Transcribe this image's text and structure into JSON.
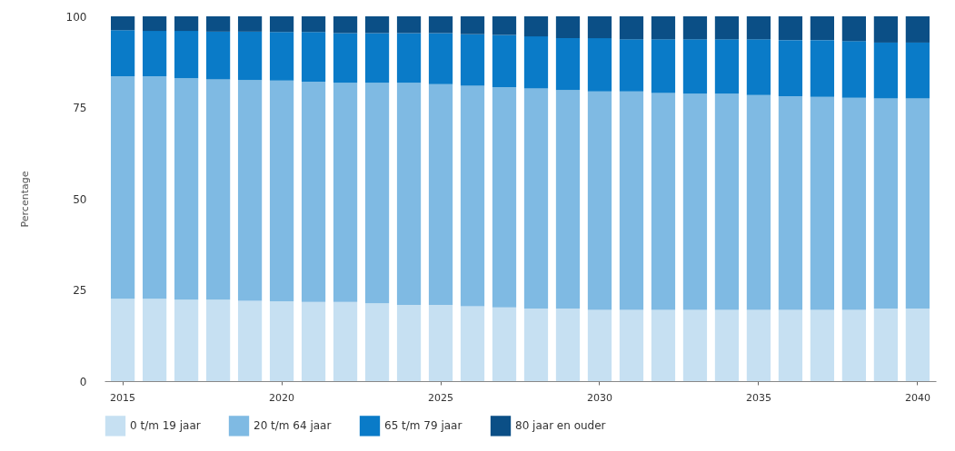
{
  "chart_data": {
    "type": "bar",
    "stacked": true,
    "ylabel": "Percentage",
    "ylim": [
      0,
      100
    ],
    "yticks": [
      0,
      25,
      50,
      75,
      100
    ],
    "grid": false,
    "legend": "bottom",
    "categories": [
      "2015",
      null,
      null,
      null,
      null,
      "2020",
      null,
      null,
      null,
      null,
      "2025",
      null,
      null,
      null,
      null,
      "2030",
      null,
      null,
      null,
      null,
      "2035",
      null,
      null,
      null,
      null,
      "2040"
    ],
    "series": [
      {
        "name": "0 t/m 19 jaar",
        "color": "#c6e0f2",
        "values": [
          22.6,
          22.6,
          22.3,
          22.3,
          22.0,
          21.9,
          21.7,
          21.7,
          21.3,
          20.9,
          20.9,
          20.5,
          20.2,
          19.9,
          19.9,
          19.5,
          19.5,
          19.5,
          19.5,
          19.5,
          19.5,
          19.5,
          19.5,
          19.5,
          19.9,
          19.9
        ]
      },
      {
        "name": "20 t/m 64 jaar",
        "color": "#7fbae3",
        "values": [
          61.0,
          61.0,
          60.7,
          60.4,
          60.5,
          60.5,
          60.4,
          60.1,
          60.5,
          60.9,
          60.5,
          60.5,
          60.4,
          60.3,
          59.9,
          59.9,
          59.9,
          59.5,
          59.3,
          59.3,
          58.9,
          58.6,
          58.4,
          58.2,
          57.6,
          57.6
        ]
      },
      {
        "name": "65 t/m 79 jaar",
        "color": "#0a7bc8",
        "values": [
          12.6,
          12.4,
          13.0,
          13.1,
          13.3,
          13.3,
          13.6,
          13.6,
          13.6,
          13.6,
          14.0,
          14.1,
          14.3,
          14.3,
          14.2,
          14.6,
          14.3,
          14.7,
          14.9,
          14.9,
          15.3,
          15.4,
          15.6,
          15.5,
          15.3,
          15.3
        ]
      },
      {
        "name": "80 jaar en ouder",
        "color": "#0b4f86",
        "values": [
          3.8,
          4.0,
          4.0,
          4.2,
          4.2,
          4.3,
          4.3,
          4.6,
          4.6,
          4.6,
          4.6,
          4.9,
          5.1,
          5.5,
          6.0,
          6.0,
          6.3,
          6.3,
          6.3,
          6.3,
          6.3,
          6.5,
          6.5,
          6.8,
          7.2,
          7.2
        ]
      }
    ]
  }
}
